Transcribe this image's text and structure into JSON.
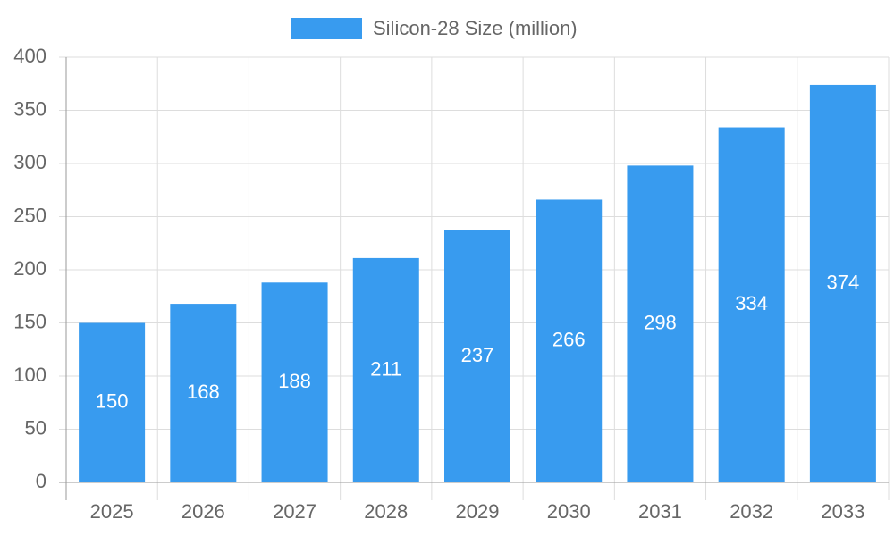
{
  "chart_data": {
    "type": "bar",
    "categories": [
      "2025",
      "2026",
      "2027",
      "2028",
      "2029",
      "2030",
      "2031",
      "2032",
      "2033"
    ],
    "series": [
      {
        "name": "Silicon-28 Size (million)",
        "color": "#389bef",
        "values": [
          150,
          168,
          188,
          211,
          237,
          266,
          298,
          334,
          374
        ]
      }
    ],
    "ylim": [
      0,
      400
    ],
    "yticks": [
      0,
      50,
      100,
      150,
      200,
      250,
      300,
      350,
      400
    ],
    "grid": true,
    "legend": "top",
    "data_labels": true
  }
}
